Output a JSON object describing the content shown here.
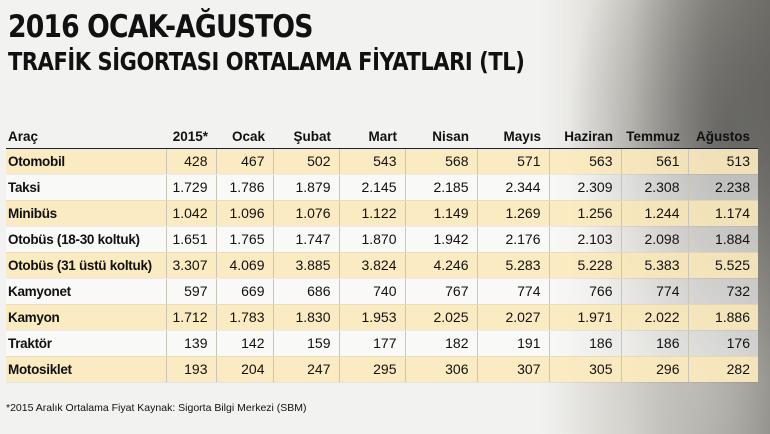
{
  "chart_data": {
    "type": "table",
    "title": "2016 OCAK-AĞUSTOS",
    "subtitle": "TRAFİK SİGORTASI ORTALAMA FİYATLARI (TL)",
    "columns": [
      "Araç",
      "2015*",
      "Ocak",
      "Şubat",
      "Mart",
      "Nisan",
      "Mayıs",
      "Haziran",
      "Temmuz",
      "Ağustos"
    ],
    "rows": [
      {
        "label": "Otomobil",
        "values": [
          "428",
          "467",
          "502",
          "543",
          "568",
          "571",
          "563",
          "561",
          "513"
        ]
      },
      {
        "label": "Taksi",
        "values": [
          "1.729",
          "1.786",
          "1.879",
          "2.145",
          "2.185",
          "2.344",
          "2.309",
          "2.308",
          "2.238"
        ]
      },
      {
        "label": "Minibüs",
        "values": [
          "1.042",
          "1.096",
          "1.076",
          "1.122",
          "1.149",
          "1.269",
          "1.256",
          "1.244",
          "1.174"
        ]
      },
      {
        "label": "Otobüs (18-30 koltuk)",
        "values": [
          "1.651",
          "1.765",
          "1.747",
          "1.870",
          "1.942",
          "2.176",
          "2.103",
          "2.098",
          "1.884"
        ]
      },
      {
        "label": "Otobüs (31 üstü koltuk)",
        "values": [
          "3.307",
          "4.069",
          "3.885",
          "3.824",
          "4.246",
          "5.283",
          "5.228",
          "5.383",
          "5.525"
        ]
      },
      {
        "label": "Kamyonet",
        "values": [
          "597",
          "669",
          "686",
          "740",
          "767",
          "774",
          "766",
          "774",
          "732"
        ]
      },
      {
        "label": "Kamyon",
        "values": [
          "1.712",
          "1.783",
          "1.830",
          "1.953",
          "2.025",
          "2.027",
          "1.971",
          "2.022",
          "1.886"
        ]
      },
      {
        "label": "Traktör",
        "values": [
          "139",
          "142",
          "159",
          "177",
          "182",
          "191",
          "186",
          "186",
          "176"
        ]
      },
      {
        "label": "Motosiklet",
        "values": [
          "193",
          "204",
          "247",
          "295",
          "306",
          "307",
          "305",
          "296",
          "282"
        ]
      }
    ],
    "footnote": "*2015 Aralık Ortalama Fiyat Kaynak: Sigorta Bilgi Merkezi (SBM)"
  }
}
